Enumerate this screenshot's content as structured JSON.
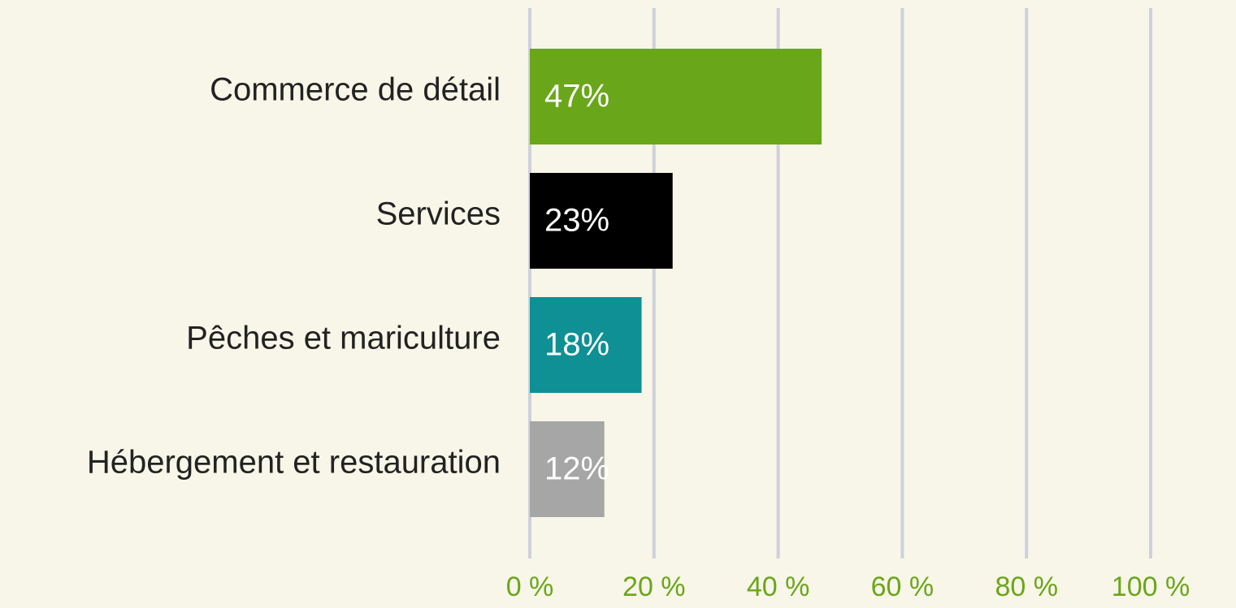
{
  "chart_data": {
    "type": "barh",
    "categories": [
      "Commerce de détail",
      "Services",
      "Pêches et mariculture",
      "Hébergement et restauration"
    ],
    "values": [
      47,
      23,
      18,
      12
    ],
    "value_labels": [
      "47%",
      "23%",
      "18%",
      "12%"
    ],
    "colors": [
      "#6aa61a",
      "#000000",
      "#0e9094",
      "#a6a6a6"
    ],
    "xlim": [
      0,
      100
    ],
    "xticks": [
      {
        "value": 0,
        "label": "0 %"
      },
      {
        "value": 20,
        "label": "20 %"
      },
      {
        "value": 40,
        "label": "40 %"
      },
      {
        "value": 60,
        "label": "60 %"
      },
      {
        "value": 80,
        "label": "80 %"
      },
      {
        "value": 100,
        "label": "100 %"
      }
    ],
    "grid": true
  }
}
